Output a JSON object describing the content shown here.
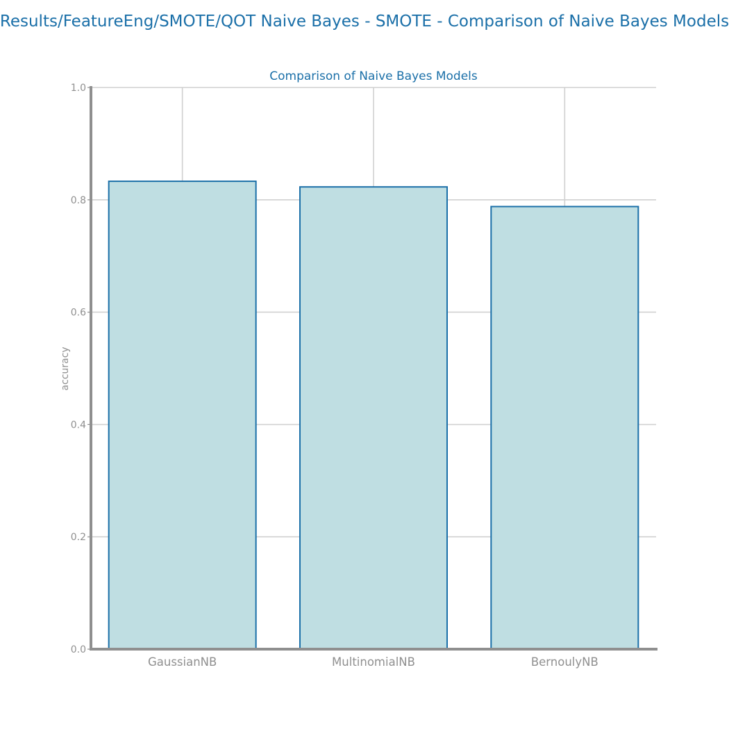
{
  "page": {
    "suptitle": "Results/FeatureEng/SMOTE/QOT Naive Bayes - SMOTE - Comparison of Naive Bayes Models"
  },
  "chart_data": {
    "type": "bar",
    "title": "Comparison of Naive Bayes Models",
    "xlabel": "",
    "ylabel": "accuracy",
    "categories": [
      "GaussianNB",
      "MultinomialNB",
      "BernoulyNB"
    ],
    "values": [
      0.833,
      0.823,
      0.788
    ],
    "ylim": [
      0.0,
      1.0
    ],
    "yticks": [
      "0.0",
      "0.2",
      "0.4",
      "0.6",
      "0.8",
      "1.0"
    ],
    "grid": true,
    "colors": {
      "bar_fill": "#bfdee2",
      "bar_edge": "#1a6fa8",
      "title": "#1a6fa8",
      "axis": "#8f8f8f",
      "grid": "#d0d0d0",
      "tick_text": "#8f8f8f"
    }
  }
}
